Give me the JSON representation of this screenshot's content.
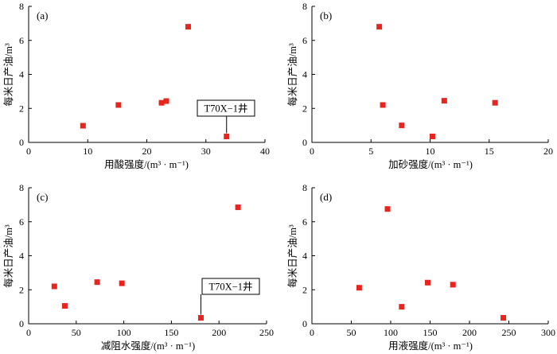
{
  "chart_data": [
    {
      "type": "scatter",
      "panel_label": "(a)",
      "xlabel": "用酸强度/(m³ · m⁻¹)",
      "ylabel": "每米日产油/m³",
      "xlim": [
        0,
        40
      ],
      "ylim": [
        0,
        8
      ],
      "xticks": [
        0,
        10,
        20,
        30,
        40
      ],
      "yticks": [
        0,
        2,
        4,
        6,
        8
      ],
      "points": [
        {
          "x": 9.2,
          "y": 0.98
        },
        {
          "x": 15.2,
          "y": 2.2
        },
        {
          "x": 22.5,
          "y": 2.33
        },
        {
          "x": 23.3,
          "y": 2.43
        },
        {
          "x": 27.0,
          "y": 6.8
        },
        {
          "x": 33.5,
          "y": 0.35
        }
      ],
      "annotation": {
        "text": "T70X−1井",
        "x": 33.5,
        "y": 0.35
      }
    },
    {
      "type": "scatter",
      "panel_label": "(b)",
      "xlabel": "加砂强度/(m³ · m⁻¹)",
      "ylabel": "每米日产油/m³",
      "xlim": [
        0,
        20
      ],
      "ylim": [
        0,
        8
      ],
      "xticks": [
        0,
        5,
        10,
        15,
        20
      ],
      "yticks": [
        0,
        2,
        4,
        6,
        8
      ],
      "points": [
        {
          "x": 5.7,
          "y": 6.8
        },
        {
          "x": 6.0,
          "y": 2.2
        },
        {
          "x": 7.6,
          "y": 1.0
        },
        {
          "x": 10.2,
          "y": 0.35
        },
        {
          "x": 11.2,
          "y": 2.45
        },
        {
          "x": 15.5,
          "y": 2.33
        }
      ]
    },
    {
      "type": "scatter",
      "panel_label": "(c)",
      "xlabel": "减阻水强度/(m³ · m⁻¹)",
      "ylabel": "每米日产油/m³",
      "xlim": [
        0,
        250
      ],
      "ylim": [
        0,
        8
      ],
      "xticks": [
        0,
        50,
        100,
        150,
        200,
        250
      ],
      "yticks": [
        0,
        2,
        4,
        6,
        8
      ],
      "points": [
        {
          "x": 27,
          "y": 2.2
        },
        {
          "x": 38,
          "y": 1.05
        },
        {
          "x": 72,
          "y": 2.45
        },
        {
          "x": 98,
          "y": 2.38
        },
        {
          "x": 181,
          "y": 0.35
        },
        {
          "x": 220,
          "y": 6.85
        }
      ],
      "annotation": {
        "text": "T70X−1井",
        "x": 181,
        "y": 0.35
      }
    },
    {
      "type": "scatter",
      "panel_label": "(d)",
      "xlabel": "用液强度/(m³ · m⁻¹)",
      "ylabel": "每米日产油/m³",
      "xlim": [
        0,
        300
      ],
      "ylim": [
        0,
        8
      ],
      "xticks": [
        0,
        50,
        100,
        150,
        200,
        250,
        300
      ],
      "yticks": [
        0,
        2,
        4,
        6,
        8
      ],
      "points": [
        {
          "x": 60,
          "y": 2.12
        },
        {
          "x": 96,
          "y": 6.75
        },
        {
          "x": 114,
          "y": 1.0
        },
        {
          "x": 147,
          "y": 2.42
        },
        {
          "x": 179,
          "y": 2.3
        },
        {
          "x": 243,
          "y": 0.35
        }
      ]
    }
  ]
}
